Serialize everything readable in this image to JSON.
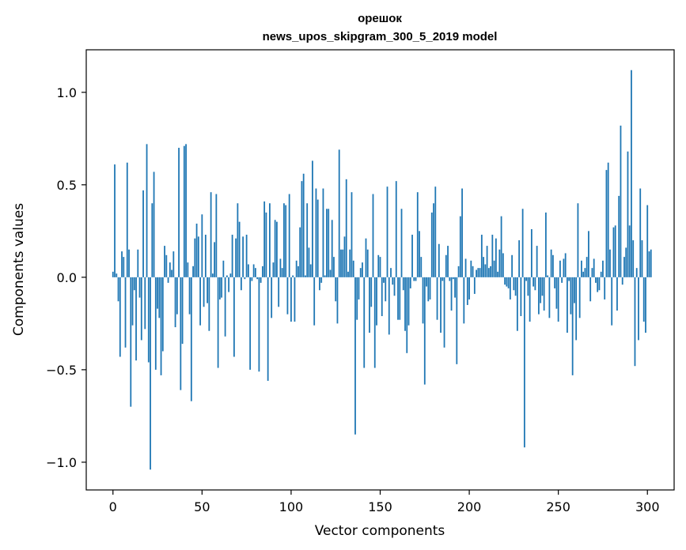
{
  "chart_data": {
    "type": "bar",
    "title": "орешок",
    "subtitle": "news_upos_skipgram_300_5_2019 model",
    "xlabel": "Vector components",
    "ylabel": "Components values",
    "xlim": [
      -15,
      315
    ],
    "ylim": [
      -1.15,
      1.23
    ],
    "xticks": [
      0,
      50,
      100,
      150,
      200,
      250,
      300
    ],
    "yticks": [
      -1.0,
      -0.5,
      0.0,
      0.5,
      1.0
    ],
    "xtick_labels": [
      "0",
      "50",
      "100",
      "150",
      "200",
      "250",
      "300"
    ],
    "ytick_labels": [
      "−1.0",
      "−0.5",
      "0.0",
      "0.5",
      "1.0"
    ],
    "grid": false,
    "bar_color": "#1f77b4",
    "values": [
      0.03,
      0.61,
      0.02,
      -0.13,
      -0.43,
      0.14,
      0.11,
      -0.38,
      0.62,
      0.15,
      -0.7,
      -0.26,
      -0.07,
      -0.45,
      0.15,
      -0.11,
      -0.34,
      0.47,
      -0.28,
      0.72,
      -0.46,
      -1.04,
      0.4,
      0.57,
      -0.5,
      -0.17,
      -0.22,
      -0.53,
      -0.4,
      0.17,
      0.12,
      -0.03,
      0.08,
      0.04,
      0.14,
      -0.27,
      -0.2,
      0.7,
      -0.61,
      -0.36,
      0.71,
      0.72,
      0.08,
      -0.2,
      -0.67,
      0.06,
      0.21,
      0.29,
      0.22,
      -0.26,
      0.34,
      -0.16,
      0.23,
      -0.14,
      -0.29,
      0.46,
      0.02,
      0.19,
      0.45,
      -0.49,
      -0.12,
      -0.11,
      0.09,
      -0.32,
      0.01,
      -0.08,
      0.02,
      0.23,
      -0.43,
      0.21,
      0.4,
      0.3,
      -0.07,
      0.22,
      -0.01,
      0.23,
      0.07,
      -0.5,
      -0.02,
      0.07,
      0.05,
      -0.01,
      -0.51,
      -0.03,
      0.06,
      0.41,
      0.35,
      -0.56,
      0.4,
      -0.22,
      0.08,
      0.31,
      0.3,
      -0.16,
      0.1,
      0.05,
      0.4,
      0.39,
      -0.2,
      0.45,
      -0.24,
      0.01,
      -0.24,
      0.09,
      0.06,
      0.27,
      0.52,
      0.56,
      0.01,
      0.4,
      0.16,
      0.07,
      0.63,
      -0.26,
      0.48,
      0.42,
      -0.07,
      -0.03,
      0.48,
      0.01,
      0.37,
      0.37,
      0.04,
      0.31,
      0.11,
      -0.13,
      -0.25,
      0.69,
      0.15,
      0.15,
      0.22,
      0.53,
      0.03,
      0.15,
      0.46,
      0.09,
      -0.85,
      -0.23,
      -0.12,
      0.05,
      0.08,
      -0.49,
      0.21,
      0.15,
      -0.3,
      -0.16,
      0.45,
      -0.49,
      -0.26,
      0.12,
      0.11,
      -0.21,
      -0.03,
      -0.13,
      0.49,
      -0.31,
      0.05,
      -0.04,
      -0.1,
      0.52,
      -0.23,
      -0.23,
      0.37,
      -0.07,
      -0.29,
      -0.41,
      -0.26,
      -0.06,
      0.23,
      -0.02,
      -0.02,
      0.46,
      0.25,
      0.11,
      -0.25,
      -0.58,
      -0.05,
      -0.13,
      -0.12,
      0.35,
      0.4,
      0.49,
      -0.23,
      0.18,
      -0.3,
      -0.02,
      -0.38,
      0.12,
      0.17,
      -0.02,
      -0.18,
      -0.01,
      -0.11,
      -0.47,
      0.06,
      0.33,
      0.48,
      -0.25,
      0.1,
      -0.15,
      -0.12,
      0.09,
      0.06,
      -0.09,
      0.04,
      0.05,
      0.05,
      0.23,
      0.11,
      0.07,
      0.17,
      0.05,
      0.06,
      0.23,
      0.09,
      0.21,
      0.03,
      0.15,
      0.33,
      0.13,
      -0.04,
      -0.05,
      -0.06,
      -0.12,
      0.12,
      -0.07,
      -0.1,
      -0.29,
      0.2,
      -0.21,
      0.37,
      -0.92,
      -0.02,
      -0.1,
      -0.24,
      0.26,
      -0.05,
      -0.07,
      0.17,
      -0.2,
      -0.14,
      -0.1,
      -0.18,
      0.35,
      0.01,
      -0.22,
      0.15,
      0.12,
      -0.06,
      -0.17,
      -0.24,
      0.09,
      -0.03,
      0.1,
      0.13,
      -0.3,
      -0.02,
      -0.2,
      -0.53,
      -0.14,
      -0.34,
      0.4,
      -0.22,
      0.09,
      0.03,
      0.05,
      0.11,
      0.25,
      -0.13,
      0.05,
      0.1,
      -0.03,
      -0.08,
      -0.07,
      0.03,
      0.09,
      -0.12,
      0.58,
      0.62,
      0.15,
      -0.26,
      0.27,
      0.28,
      -0.18,
      0.44,
      0.82,
      -0.04,
      0.11,
      0.16,
      0.68,
      0.28,
      1.12,
      0.2,
      -0.48,
      0.05,
      -0.34,
      0.48,
      0.2,
      -0.24,
      -0.3,
      0.39,
      0.14,
      0.15
    ]
  }
}
